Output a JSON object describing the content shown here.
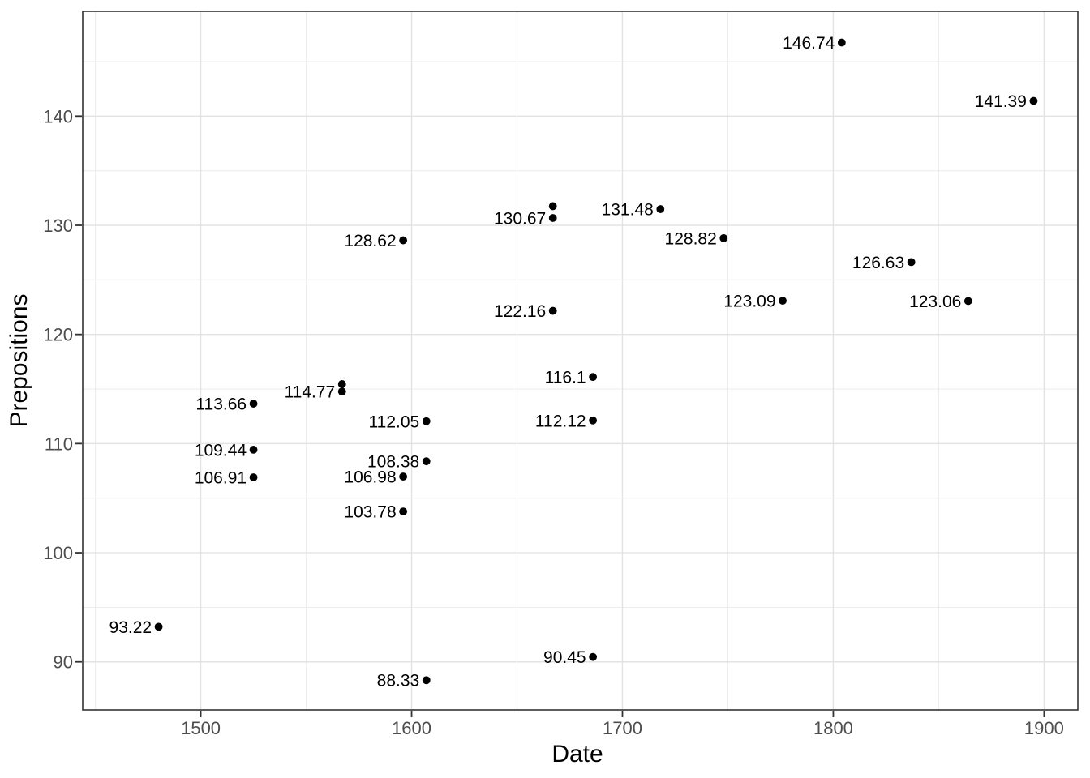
{
  "chart_data": {
    "type": "scatter",
    "title": "",
    "xlabel": "Date",
    "ylabel": "Prepositions",
    "xlim": [
      1444,
      1916
    ],
    "ylim": [
      85.6,
      149.6
    ],
    "x_ticks": [
      1500,
      1600,
      1700,
      1800,
      1900
    ],
    "x_tick_labels": [
      "1500",
      "1600",
      "1700",
      "1800",
      "1900"
    ],
    "y_ticks": [
      90,
      100,
      110,
      120,
      130,
      140
    ],
    "y_tick_labels": [
      "90",
      "100",
      "110",
      "120",
      "130",
      "140"
    ],
    "x_minor_ticks": [
      1450,
      1550,
      1650,
      1750,
      1850
    ],
    "y_minor_ticks": [
      95,
      105,
      115,
      125,
      135,
      145
    ],
    "grid": "major+minor",
    "legend": "none",
    "points": [
      {
        "x": 1480,
        "y": 93.22,
        "label": "93.22"
      },
      {
        "x": 1525,
        "y": 113.66,
        "label": "113.66"
      },
      {
        "x": 1525,
        "y": 109.44,
        "label": "109.44"
      },
      {
        "x": 1525,
        "y": 106.91,
        "label": "106.91"
      },
      {
        "x": 1567,
        "y": 115.45,
        "label": null
      },
      {
        "x": 1567,
        "y": 114.77,
        "label": "114.77"
      },
      {
        "x": 1596,
        "y": 128.62,
        "label": "128.62"
      },
      {
        "x": 1596,
        "y": 106.98,
        "label": "106.98"
      },
      {
        "x": 1596,
        "y": 103.78,
        "label": "103.78"
      },
      {
        "x": 1607,
        "y": 112.05,
        "label": "112.05"
      },
      {
        "x": 1607,
        "y": 108.38,
        "label": "108.38"
      },
      {
        "x": 1607,
        "y": 88.33,
        "label": "88.33"
      },
      {
        "x": 1667,
        "y": 131.75,
        "label": null
      },
      {
        "x": 1667,
        "y": 130.67,
        "label": "130.67"
      },
      {
        "x": 1667,
        "y": 122.16,
        "label": "122.16"
      },
      {
        "x": 1686,
        "y": 116.1,
        "label": "116.1"
      },
      {
        "x": 1686,
        "y": 112.12,
        "label": "112.12"
      },
      {
        "x": 1686,
        "y": 90.45,
        "label": "90.45"
      },
      {
        "x": 1718,
        "y": 131.48,
        "label": "131.48"
      },
      {
        "x": 1748,
        "y": 128.82,
        "label": "128.82"
      },
      {
        "x": 1776,
        "y": 123.09,
        "label": "123.09"
      },
      {
        "x": 1804,
        "y": 146.74,
        "label": "146.74"
      },
      {
        "x": 1837,
        "y": 126.63,
        "label": "126.63"
      },
      {
        "x": 1864,
        "y": 123.06,
        "label": "123.06"
      },
      {
        "x": 1895,
        "y": 141.39,
        "label": "141.39"
      }
    ],
    "theme": {
      "background": "#ffffff",
      "panel_background": "#ffffff",
      "panel_border": "#333333",
      "grid_major": "#e3e3e3",
      "grid_minor": "#ededed",
      "tick_color": "#333333",
      "tick_label_color": "#4d4d4d",
      "axis_title_color": "#000000",
      "point_color": "#000000",
      "point_label_color": "#000000"
    }
  }
}
